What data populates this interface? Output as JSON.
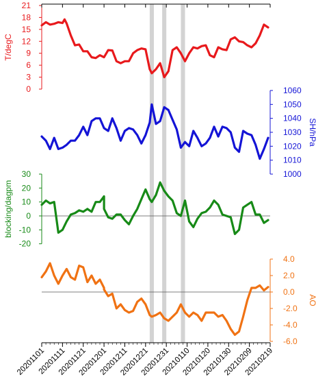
{
  "chart_data": {
    "type": "line",
    "x_dates": [
      "20201101",
      "20201111",
      "20201121",
      "20201201",
      "20201211",
      "20201221",
      "20201231",
      "20210110",
      "20210120",
      "20210130",
      "20210209",
      "20210219"
    ],
    "x_start": "20201101",
    "x_end": "20210219",
    "shaded_periods": [
      [
        "20201223",
        "20201225"
      ],
      [
        "20201229",
        "20201231"
      ],
      [
        "20210107",
        "20210109"
      ]
    ],
    "panels": [
      {
        "id": "T",
        "axis_side": "left",
        "ylabel": "T/degC",
        "color": "#e8191c",
        "ylim": [
          0,
          21
        ],
        "ticks": [
          0,
          3,
          6,
          9,
          12,
          15,
          18,
          21
        ],
        "tick_labels": [
          "0",
          "3",
          "6",
          "9",
          "12",
          "15",
          "18",
          "21"
        ],
        "zero_line": false,
        "series": [
          {
            "x": "20201101",
            "y": 16.0
          },
          {
            "x": "20201103",
            "y": 16.8
          },
          {
            "x": "20201105",
            "y": 16.2
          },
          {
            "x": "20201107",
            "y": 16.4
          },
          {
            "x": "20201109",
            "y": 16.8
          },
          {
            "x": "20201111",
            "y": 16.6
          },
          {
            "x": "20201112",
            "y": 17.5
          },
          {
            "x": "20201113",
            "y": 16.5
          },
          {
            "x": "20201115",
            "y": 13.5
          },
          {
            "x": "20201117",
            "y": 11.0
          },
          {
            "x": "20201119",
            "y": 11.2
          },
          {
            "x": "20201121",
            "y": 9.5
          },
          {
            "x": "20201123",
            "y": 9.5
          },
          {
            "x": "20201125",
            "y": 8.0
          },
          {
            "x": "20201127",
            "y": 7.8
          },
          {
            "x": "20201129",
            "y": 8.5
          },
          {
            "x": "20201201",
            "y": 8.0
          },
          {
            "x": "20201203",
            "y": 9.8
          },
          {
            "x": "20201205",
            "y": 9.7
          },
          {
            "x": "20201207",
            "y": 7.0
          },
          {
            "x": "20201209",
            "y": 6.5
          },
          {
            "x": "20201211",
            "y": 7.0
          },
          {
            "x": "20201213",
            "y": 7.0
          },
          {
            "x": "20201215",
            "y": 9.0
          },
          {
            "x": "20201217",
            "y": 9.8
          },
          {
            "x": "20201219",
            "y": 10.2
          },
          {
            "x": "20201221",
            "y": 10.0
          },
          {
            "x": "20201223",
            "y": 5.0
          },
          {
            "x": "20201224",
            "y": 4.0
          },
          {
            "x": "20201226",
            "y": 5.0
          },
          {
            "x": "20201228",
            "y": 6.5
          },
          {
            "x": "20201230",
            "y": 3.0
          },
          {
            "x": "20210101",
            "y": 4.5
          },
          {
            "x": "20210103",
            "y": 9.8
          },
          {
            "x": "20210105",
            "y": 10.5
          },
          {
            "x": "20210107",
            "y": 9.0
          },
          {
            "x": "20210109",
            "y": 7.0
          },
          {
            "x": "20210111",
            "y": 9.0
          },
          {
            "x": "20210113",
            "y": 10.5
          },
          {
            "x": "20210115",
            "y": 10.2
          },
          {
            "x": "20210117",
            "y": 10.8
          },
          {
            "x": "20210119",
            "y": 11.0
          },
          {
            "x": "20210121",
            "y": 8.5
          },
          {
            "x": "20210123",
            "y": 8.0
          },
          {
            "x": "20210125",
            "y": 10.5
          },
          {
            "x": "20210127",
            "y": 10.0
          },
          {
            "x": "20210129",
            "y": 9.8
          },
          {
            "x": "20210131",
            "y": 12.5
          },
          {
            "x": "20210202",
            "y": 13.0
          },
          {
            "x": "20210204",
            "y": 12.0
          },
          {
            "x": "20210206",
            "y": 11.8
          },
          {
            "x": "20210208",
            "y": 11.0
          },
          {
            "x": "20210210",
            "y": 10.5
          },
          {
            "x": "20210212",
            "y": 11.5
          },
          {
            "x": "20210214",
            "y": 13.5
          },
          {
            "x": "20210216",
            "y": 16.2
          },
          {
            "x": "20210218",
            "y": 15.5
          }
        ]
      },
      {
        "id": "SH",
        "axis_side": "right",
        "ylabel": "SH/hPa",
        "color": "#1414d6",
        "ylim": [
          1000,
          1060
        ],
        "ticks": [
          1000,
          1010,
          1020,
          1030,
          1040,
          1050,
          1060
        ],
        "tick_labels": [
          "1000",
          "1010",
          "1020",
          "1030",
          "1040",
          "1050",
          "1060"
        ],
        "zero_line": false,
        "series": [
          {
            "x": "20201101",
            "y": 1027
          },
          {
            "x": "20201103",
            "y": 1024
          },
          {
            "x": "20201105",
            "y": 1018
          },
          {
            "x": "20201107",
            "y": 1026
          },
          {
            "x": "20201109",
            "y": 1018
          },
          {
            "x": "20201111",
            "y": 1019
          },
          {
            "x": "20201113",
            "y": 1021
          },
          {
            "x": "20201115",
            "y": 1024
          },
          {
            "x": "20201117",
            "y": 1024
          },
          {
            "x": "20201119",
            "y": 1028
          },
          {
            "x": "20201121",
            "y": 1034
          },
          {
            "x": "20201123",
            "y": 1028
          },
          {
            "x": "20201125",
            "y": 1038
          },
          {
            "x": "20201127",
            "y": 1040
          },
          {
            "x": "20201129",
            "y": 1040
          },
          {
            "x": "20201201",
            "y": 1033
          },
          {
            "x": "20201203",
            "y": 1031
          },
          {
            "x": "20201205",
            "y": 1040
          },
          {
            "x": "20201207",
            "y": 1033
          },
          {
            "x": "20201209",
            "y": 1024
          },
          {
            "x": "20201211",
            "y": 1031
          },
          {
            "x": "20201213",
            "y": 1033
          },
          {
            "x": "20201215",
            "y": 1032
          },
          {
            "x": "20201217",
            "y": 1028
          },
          {
            "x": "20201219",
            "y": 1022
          },
          {
            "x": "20201221",
            "y": 1028
          },
          {
            "x": "20201223",
            "y": 1037
          },
          {
            "x": "20201224",
            "y": 1050
          },
          {
            "x": "20201226",
            "y": 1036
          },
          {
            "x": "20201228",
            "y": 1038
          },
          {
            "x": "20201230",
            "y": 1048
          },
          {
            "x": "20210101",
            "y": 1046
          },
          {
            "x": "20210103",
            "y": 1039
          },
          {
            "x": "20210105",
            "y": 1032
          },
          {
            "x": "20210107",
            "y": 1019
          },
          {
            "x": "20210109",
            "y": 1023
          },
          {
            "x": "20210111",
            "y": 1020
          },
          {
            "x": "20210113",
            "y": 1031
          },
          {
            "x": "20210115",
            "y": 1026
          },
          {
            "x": "20210117",
            "y": 1020
          },
          {
            "x": "20210119",
            "y": 1022
          },
          {
            "x": "20210121",
            "y": 1026
          },
          {
            "x": "20210123",
            "y": 1034
          },
          {
            "x": "20210125",
            "y": 1027
          },
          {
            "x": "20210127",
            "y": 1034
          },
          {
            "x": "20210129",
            "y": 1033
          },
          {
            "x": "20210131",
            "y": 1030
          },
          {
            "x": "20210202",
            "y": 1019
          },
          {
            "x": "20210204",
            "y": 1016
          },
          {
            "x": "20210206",
            "y": 1031
          },
          {
            "x": "20210208",
            "y": 1029
          },
          {
            "x": "20210210",
            "y": 1028
          },
          {
            "x": "20210212",
            "y": 1021
          },
          {
            "x": "20210214",
            "y": 1011
          },
          {
            "x": "20210216",
            "y": 1018
          },
          {
            "x": "20210218",
            "y": 1026
          }
        ]
      },
      {
        "id": "blocking",
        "axis_side": "left",
        "ylabel": "blocking/dagpm",
        "color": "#178a17",
        "ylim": [
          -30,
          30
        ],
        "ticks": [
          -20,
          -10,
          0,
          10,
          20,
          30
        ],
        "tick_labels": [
          "-20",
          "-10",
          "0",
          "10",
          "20",
          "30"
        ],
        "zero_line": true,
        "series": [
          {
            "x": "20201101",
            "y": 8
          },
          {
            "x": "20201103",
            "y": 11
          },
          {
            "x": "20201105",
            "y": 9
          },
          {
            "x": "20201107",
            "y": 10
          },
          {
            "x": "20201109",
            "y": -12
          },
          {
            "x": "20201111",
            "y": -10
          },
          {
            "x": "20201113",
            "y": -4
          },
          {
            "x": "20201115",
            "y": 1
          },
          {
            "x": "20201117",
            "y": 2
          },
          {
            "x": "20201119",
            "y": 4
          },
          {
            "x": "20201121",
            "y": 3
          },
          {
            "x": "20201123",
            "y": 5
          },
          {
            "x": "20201125",
            "y": 3
          },
          {
            "x": "20201127",
            "y": 10
          },
          {
            "x": "20201129",
            "y": 10
          },
          {
            "x": "20201131",
            "y": 14
          },
          {
            "x": "20201201",
            "y": 5
          },
          {
            "x": "20201203",
            "y": -1
          },
          {
            "x": "20201205",
            "y": -2
          },
          {
            "x": "20201207",
            "y": 1
          },
          {
            "x": "20201209",
            "y": 1
          },
          {
            "x": "20201211",
            "y": -3
          },
          {
            "x": "20201213",
            "y": -6
          },
          {
            "x": "20201215",
            "y": 0
          },
          {
            "x": "20201217",
            "y": 5
          },
          {
            "x": "20201219",
            "y": 12
          },
          {
            "x": "20201221",
            "y": 19
          },
          {
            "x": "20201223",
            "y": 12
          },
          {
            "x": "20201224",
            "y": 10
          },
          {
            "x": "20201226",
            "y": 15
          },
          {
            "x": "20201228",
            "y": 24
          },
          {
            "x": "20201230",
            "y": 18
          },
          {
            "x": "20210101",
            "y": 14
          },
          {
            "x": "20210103",
            "y": 11
          },
          {
            "x": "20210105",
            "y": 2
          },
          {
            "x": "20210107",
            "y": 0
          },
          {
            "x": "20210109",
            "y": 11
          },
          {
            "x": "20210111",
            "y": -4
          },
          {
            "x": "20210113",
            "y": -8
          },
          {
            "x": "20210115",
            "y": -2
          },
          {
            "x": "20210117",
            "y": 2
          },
          {
            "x": "20210119",
            "y": 3
          },
          {
            "x": "20210121",
            "y": 6
          },
          {
            "x": "20210123",
            "y": 11
          },
          {
            "x": "20210125",
            "y": 8
          },
          {
            "x": "20210127",
            "y": 1
          },
          {
            "x": "20210129",
            "y": 0
          },
          {
            "x": "20210131",
            "y": -1
          },
          {
            "x": "20210202",
            "y": -13
          },
          {
            "x": "20210204",
            "y": -10
          },
          {
            "x": "20210206",
            "y": 6
          },
          {
            "x": "20210208",
            "y": 8
          },
          {
            "x": "20210210",
            "y": 10
          },
          {
            "x": "20210212",
            "y": 1
          },
          {
            "x": "20210214",
            "y": 1
          },
          {
            "x": "20210216",
            "y": -5
          },
          {
            "x": "20210218",
            "y": -3
          }
        ]
      },
      {
        "id": "AO",
        "axis_side": "right",
        "ylabel": "AO",
        "color": "#f07213",
        "ylim": [
          -6,
          4
        ],
        "ticks": [
          -6,
          -4,
          -2,
          0,
          2,
          4
        ],
        "tick_labels": [
          "-6.0",
          "-4.0",
          "-2.0",
          "0.0",
          "2.0",
          "4.0"
        ],
        "zero_line": true,
        "series": [
          {
            "x": "20201101",
            "y": 1.8
          },
          {
            "x": "20201103",
            "y": 2.5
          },
          {
            "x": "20201105",
            "y": 3.5
          },
          {
            "x": "20201107",
            "y": 2.0
          },
          {
            "x": "20201109",
            "y": 1.0
          },
          {
            "x": "20201111",
            "y": 2.0
          },
          {
            "x": "20201113",
            "y": 2.8
          },
          {
            "x": "20201115",
            "y": 1.8
          },
          {
            "x": "20201117",
            "y": 1.5
          },
          {
            "x": "20201119",
            "y": 3.2
          },
          {
            "x": "20201121",
            "y": 3.0
          },
          {
            "x": "20201123",
            "y": 1.2
          },
          {
            "x": "20201125",
            "y": 2.0
          },
          {
            "x": "20201127",
            "y": 1.0
          },
          {
            "x": "20201129",
            "y": 1.5
          },
          {
            "x": "20201131",
            "y": 0.5
          },
          {
            "x": "20201201",
            "y": 0.3
          },
          {
            "x": "20201203",
            "y": -0.5
          },
          {
            "x": "20201205",
            "y": -0.2
          },
          {
            "x": "20201207",
            "y": -2.0
          },
          {
            "x": "20201209",
            "y": -1.5
          },
          {
            "x": "20201211",
            "y": -2.2
          },
          {
            "x": "20201213",
            "y": -2.5
          },
          {
            "x": "20201215",
            "y": -2.3
          },
          {
            "x": "20201217",
            "y": -1.2
          },
          {
            "x": "20201219",
            "y": -0.8
          },
          {
            "x": "20201221",
            "y": -1.5
          },
          {
            "x": "20201223",
            "y": -2.8
          },
          {
            "x": "20201224",
            "y": -3.0
          },
          {
            "x": "20201226",
            "y": -2.8
          },
          {
            "x": "20201228",
            "y": -2.5
          },
          {
            "x": "20201230",
            "y": -3.2
          },
          {
            "x": "20210101",
            "y": -3.5
          },
          {
            "x": "20210103",
            "y": -3.0
          },
          {
            "x": "20210105",
            "y": -2.5
          },
          {
            "x": "20210107",
            "y": -1.5
          },
          {
            "x": "20210109",
            "y": -2.5
          },
          {
            "x": "20210111",
            "y": -3.0
          },
          {
            "x": "20210113",
            "y": -2.5
          },
          {
            "x": "20210115",
            "y": -2.8
          },
          {
            "x": "20210117",
            "y": -3.5
          },
          {
            "x": "20210119",
            "y": -2.5
          },
          {
            "x": "20210121",
            "y": -2.5
          },
          {
            "x": "20210123",
            "y": -2.5
          },
          {
            "x": "20210125",
            "y": -3.0
          },
          {
            "x": "20210127",
            "y": -2.8
          },
          {
            "x": "20210129",
            "y": -3.5
          },
          {
            "x": "20210131",
            "y": -4.5
          },
          {
            "x": "20210202",
            "y": -5.2
          },
          {
            "x": "20210204",
            "y": -4.8
          },
          {
            "x": "20210206",
            "y": -3.0
          },
          {
            "x": "20210208",
            "y": -1.0
          },
          {
            "x": "20210210",
            "y": 0.5
          },
          {
            "x": "20210212",
            "y": 0.5
          },
          {
            "x": "20210214",
            "y": 0.8
          },
          {
            "x": "20210216",
            "y": 0.2
          },
          {
            "x": "20210218",
            "y": 0.6
          }
        ]
      }
    ],
    "grid": false,
    "legend": "none"
  }
}
